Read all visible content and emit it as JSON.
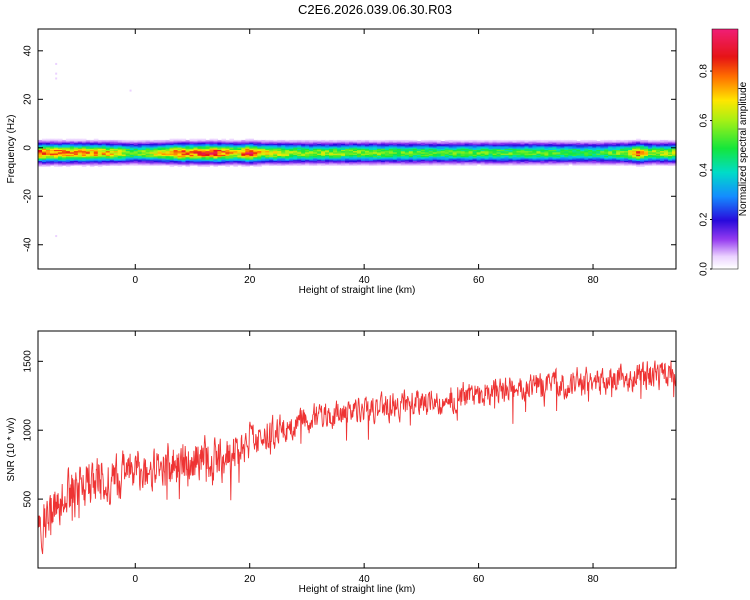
{
  "title": "C2E6.2026.039.06.30.R03",
  "colors": {
    "snr_line": "#ee3333",
    "axis": "#000000",
    "background": "#ffffff"
  },
  "chart_data": [
    {
      "type": "heatmap",
      "xlabel": "Height of straight line (km)",
      "ylabel": "Frequency (Hz)",
      "xlim": [
        -17,
        94.5
      ],
      "ylim": [
        -50,
        49
      ],
      "xticks": [
        0,
        20,
        40,
        60,
        80
      ],
      "yticks": [
        -40,
        -20,
        0,
        20,
        40
      ],
      "grid": false,
      "colorbar": {
        "label": "Normalized spectral amplitude",
        "range": [
          0,
          0.97
        ],
        "ticks": [
          0.0,
          0.2,
          0.4,
          0.6,
          0.8
        ]
      },
      "description_band": {
        "center_frequency_hz": -2,
        "halfwidth_hz": 5
      },
      "amplitude_profile": {
        "x": [
          -17,
          -10,
          -5,
          0,
          5,
          8,
          10,
          12,
          14,
          16,
          18,
          20,
          22,
          30,
          40,
          50,
          60,
          70,
          80,
          86,
          88,
          90,
          94.5
        ],
        "peak": [
          0.85,
          0.8,
          0.75,
          0.55,
          0.7,
          0.85,
          0.8,
          0.85,
          0.9,
          0.8,
          0.7,
          0.95,
          0.7,
          0.6,
          0.6,
          0.55,
          0.55,
          0.55,
          0.5,
          0.6,
          0.85,
          0.6,
          0.65
        ]
      }
    },
    {
      "type": "line",
      "xlabel": "Height of straight line (km)",
      "ylabel": "SNR (10 * v/v)",
      "xlim": [
        -17,
        94.5
      ],
      "ylim": [
        0,
        1720
      ],
      "xticks": [
        0,
        20,
        40,
        60,
        80
      ],
      "yticks": [
        500,
        1000,
        1500
      ],
      "grid": false,
      "series": [
        {
          "trend_x": [
            -17,
            -10,
            0,
            10,
            15,
            20,
            25,
            30,
            40,
            50,
            60,
            70,
            80,
            90,
            94.5
          ],
          "trend_y": [
            300,
            600,
            700,
            780,
            800,
            900,
            1000,
            1080,
            1150,
            1200,
            1270,
            1320,
            1360,
            1400,
            1420
          ],
          "noise_amplitude": [
            250,
            250,
            230,
            220,
            250,
            180,
            160,
            150,
            140,
            140,
            140,
            140,
            150,
            150,
            150
          ]
        }
      ]
    }
  ]
}
